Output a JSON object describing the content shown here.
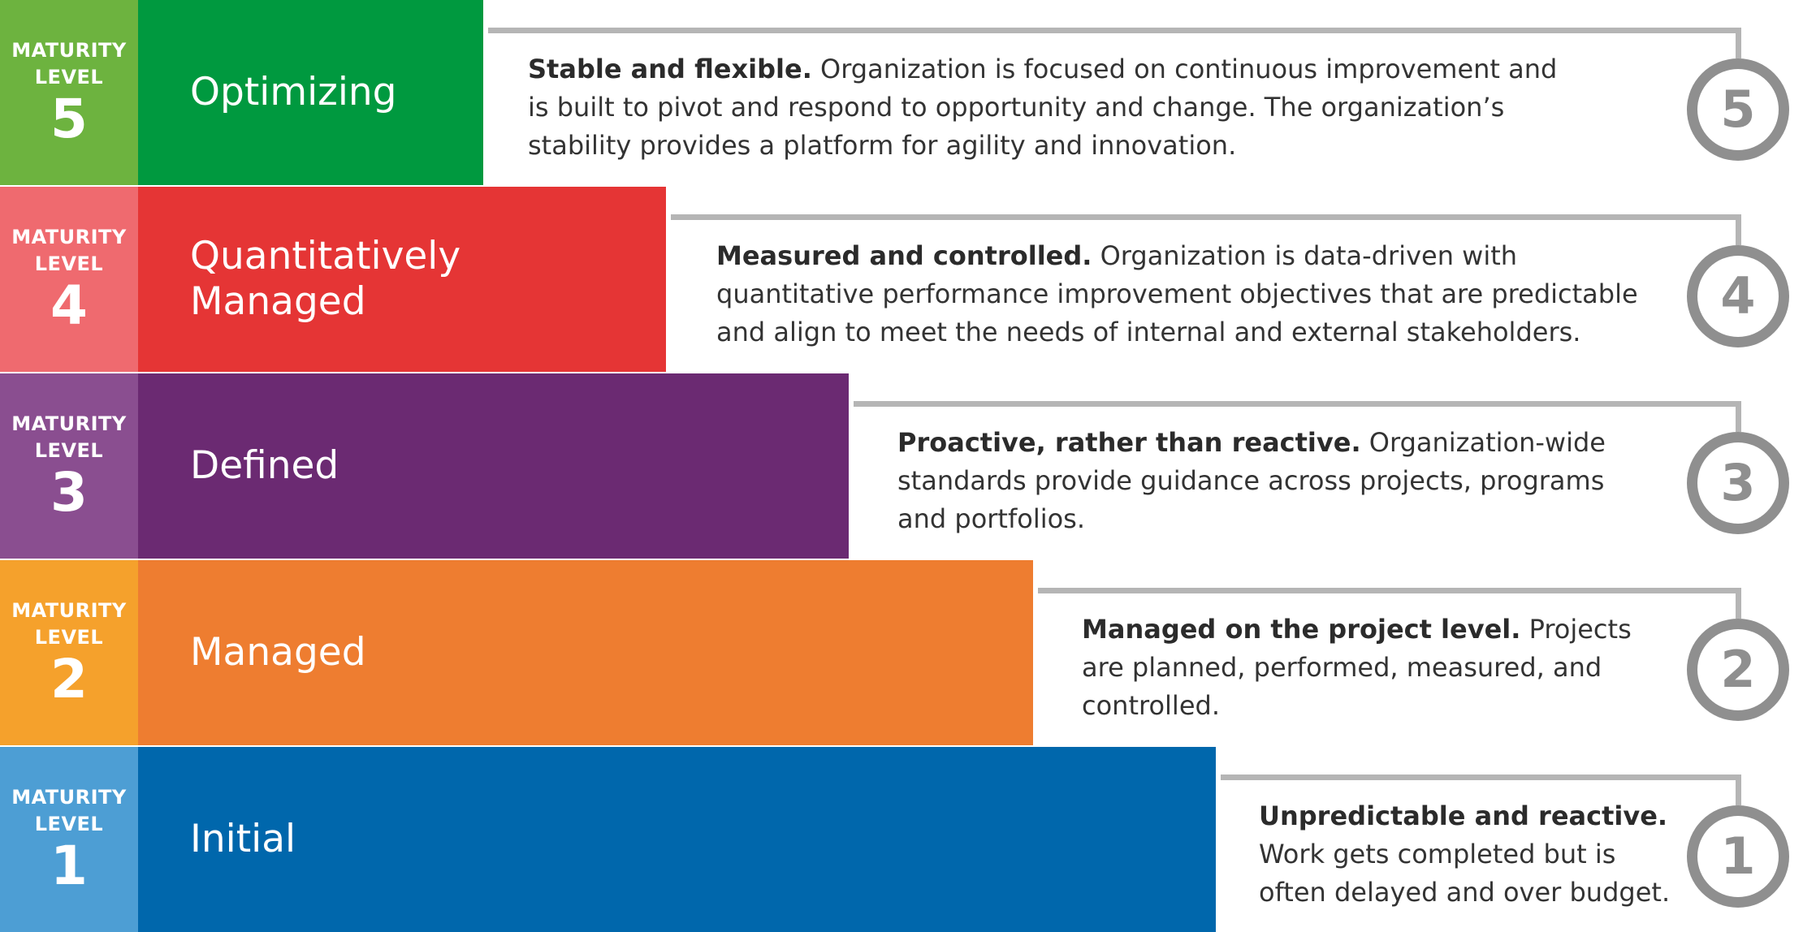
{
  "levels": [
    {
      "cap1": "MATURITY",
      "cap2": "LEVEL",
      "number": "5",
      "name_lines": [
        "Optimizing"
      ],
      "lead": "Stable and flexible.",
      "body": "  Organization is focused on continuous improvement and is built to pivot and respond to opportunity and change.  The organization’s stability provides a platform for agility and innovation.",
      "badge": "5",
      "color_main": "#00993F",
      "color_label": "#6DB33F"
    },
    {
      "cap1": "MATURITY",
      "cap2": "LEVEL",
      "number": "4",
      "name_lines": [
        "Quantitatively",
        "Managed"
      ],
      "lead": "Measured and controlled.",
      "body": " Organization is data-driven with quantitative performance improvement objectives that are predictable and align to meet the needs of internal and external stakeholders.",
      "badge": "4",
      "color_main": "#E53535",
      "color_label": "#EF6A6F"
    },
    {
      "cap1": "MATURITY",
      "cap2": "LEVEL",
      "number": "3",
      "name_lines": [
        "Defined"
      ],
      "lead": "Proactive, rather than reactive.",
      "body": " Organization-wide standards provide guidance across projects, programs and portfolios.",
      "badge": "3",
      "color_main": "#6B2A72",
      "color_label": "#8A4E90"
    },
    {
      "cap1": "MATURITY",
      "cap2": "LEVEL",
      "number": "2",
      "name_lines": [
        "Managed"
      ],
      "lead": "Managed on the project level.",
      "body": " Projects are planned, performed, measured, and controlled.",
      "badge": "2",
      "color_main": "#EE7D30",
      "color_label": "#F5A12C"
    },
    {
      "cap1": "MATURITY",
      "cap2": "LEVEL",
      "number": "1",
      "name_lines": [
        "Initial"
      ],
      "lead": "Unpredictable and reactive.",
      "body": " Work gets completed but is often delayed and over budget.",
      "badge": "1",
      "color_main": "#0067AC",
      "color_label": "#4D9ED4"
    }
  ]
}
